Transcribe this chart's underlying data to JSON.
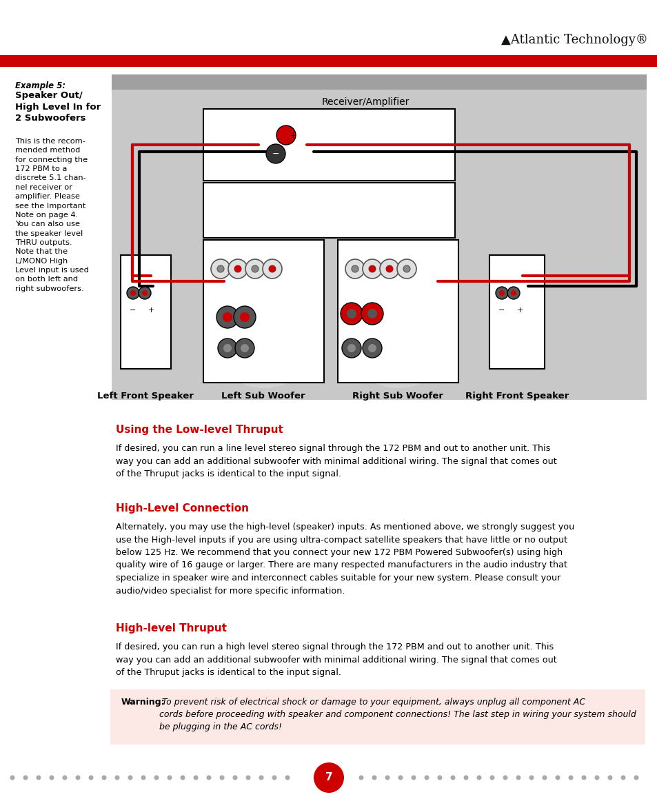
{
  "page_bg": "#ffffff",
  "header_bar_color": "#cc0000",
  "heading_color": "#cc0000",
  "text_color": "#000000",
  "section1_title": "Using the Low-level Thruput",
  "section1_text": "If desired, you can run a line level stereo signal through the 172 PBM and out to another unit. This\nway you can add an additional subwoofer with minimal additional wiring. The signal that comes out\nof the Thruput jacks is identical to the input signal.",
  "section2_title": "High-Level Connection",
  "section2_text": "Alternately, you may use the high-level (speaker) inputs. As mentioned above, we strongly suggest you\nuse the High-level inputs if you are using ultra-compact satellite speakers that have little or no output\nbelow 125 Hz. We recommend that you connect your new 172 PBM Powered Subwoofer(s) using high\nquality wire of 16 gauge or larger. There are many respected manufacturers in the audio industry that\nspecialize in speaker wire and interconnect cables suitable for your new system. Please consult your\naudio/video specialist for more specific information.",
  "section3_title": "High-level Thruput",
  "section3_text": "If desired, you can run a high level stereo signal through the 172 PBM and out to another unit. This\nway you can add an additional subwoofer with minimal additional wiring. The signal that comes out\nof the Thruput jacks is identical to the input signal.",
  "warning_bg": "#fce8e4",
  "page_number_bg": "#cc0000",
  "page_number": "7"
}
